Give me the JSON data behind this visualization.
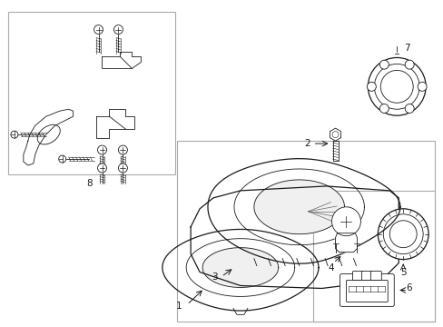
{
  "bg_color": "#ffffff",
  "line_color": "#1a1a1a",
  "gray_color": "#666666",
  "box_line_color": "#aaaaaa",
  "figsize": [
    4.89,
    3.6
  ],
  "dpi": 100
}
